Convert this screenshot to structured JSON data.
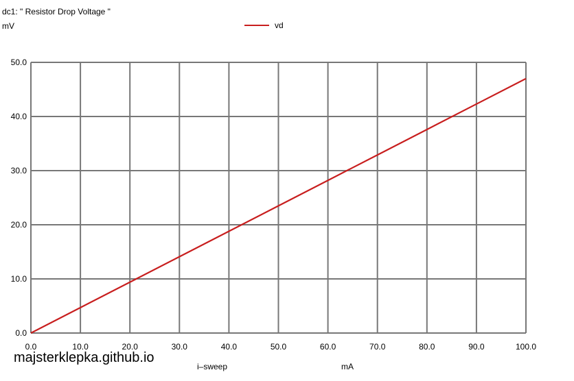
{
  "header": {
    "title": "dc1: \" Resistor Drop Voltage \"",
    "y_unit": "mV"
  },
  "legend": {
    "label": "vd",
    "color": "#c81e1e"
  },
  "footer": {
    "x_label": "i–sweep",
    "x_unit": "mA",
    "watermark": "majsterklepka.github.io"
  },
  "chart_data": {
    "type": "line",
    "title": "dc1: \" Resistor Drop Voltage \"",
    "xlabel": "i–sweep",
    "x_unit": "mA",
    "y_unit": "mV",
    "xlim": [
      0,
      100
    ],
    "ylim": [
      0,
      50
    ],
    "x_ticks": [
      "0.0",
      "10.0",
      "20.0",
      "30.0",
      "40.0",
      "50.0",
      "60.0",
      "70.0",
      "80.0",
      "90.0",
      "100.0"
    ],
    "y_ticks": [
      "0.0",
      "10.0",
      "20.0",
      "30.0",
      "40.0",
      "50.0"
    ],
    "grid": true,
    "legend_position": "top-center",
    "series": [
      {
        "name": "vd",
        "color": "#c81e1e",
        "x": [
          0,
          10,
          20,
          30,
          40,
          50,
          60,
          70,
          80,
          90,
          100
        ],
        "y": [
          0,
          4.7,
          9.4,
          14.1,
          18.8,
          23.5,
          28.2,
          32.9,
          37.6,
          42.3,
          47.0
        ]
      }
    ]
  }
}
